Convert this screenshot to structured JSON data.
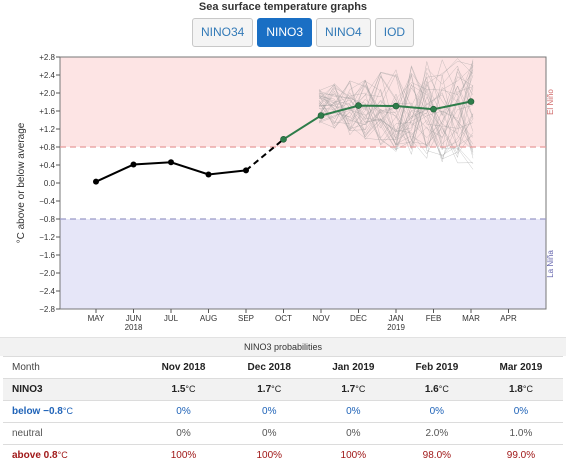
{
  "page": {
    "title": "Sea surface temperature graphs",
    "tabs": [
      {
        "label": "NINO34",
        "active": false
      },
      {
        "label": "NINO3",
        "active": true
      },
      {
        "label": "NINO4",
        "active": false
      },
      {
        "label": "IOD",
        "active": false
      }
    ]
  },
  "chart_data": {
    "type": "line",
    "ylabel": "°C above or below average",
    "ylim": [
      -2.8,
      2.8
    ],
    "yticks": [
      "+2.8",
      "+2.4",
      "+2.0",
      "+1.6",
      "+1.2",
      "+0.8",
      "+0.4",
      "0.0",
      "−0.4",
      "−0.8",
      "−1.2",
      "−1.6",
      "−2.0",
      "−2.4",
      "−2.8"
    ],
    "x_ticks": [
      "MAY",
      "JUN",
      "JUL",
      "AUG",
      "SEP",
      "OCT",
      "NOV",
      "DEC",
      "JAN",
      "FEB",
      "MAR",
      "APR"
    ],
    "year_labels": [
      {
        "label": "2018",
        "under": "JUN"
      },
      {
        "label": "2019",
        "under": "JAN"
      }
    ],
    "thresholds": {
      "el_nino": 0.8,
      "la_nina": -0.8
    },
    "zone_labels": {
      "el_nino": "El Niño",
      "la_nina": "La Niña"
    },
    "colors": {
      "observed": "#000000",
      "forecast": "#2e7d4a",
      "el_nino_zone": "#fde4e4",
      "la_nina_zone": "#e6e6f8",
      "el_nino_line": "#e89a9a",
      "la_nina_line": "#9a9ac8",
      "ensemble": "#9a9a9a"
    },
    "series": [
      {
        "kind": "observed",
        "x": [
          "MAY",
          "JUN",
          "JUL",
          "AUG",
          "SEP"
        ],
        "values": [
          0.03,
          0.41,
          0.46,
          0.19,
          0.28
        ]
      },
      {
        "kind": "link",
        "x": [
          "SEP",
          "OCT"
        ],
        "values": [
          0.28,
          0.97
        ]
      },
      {
        "kind": "forecast",
        "x": [
          "OCT",
          "NOV",
          "DEC",
          "JAN",
          "FEB",
          "MAR"
        ],
        "values": [
          0.97,
          1.5,
          1.72,
          1.71,
          1.64,
          1.81
        ]
      }
    ],
    "ensemble": {
      "x": [
        "NOV",
        "DEC",
        "JAN",
        "FEB",
        "MAR"
      ],
      "low": [
        1.3,
        1.0,
        0.7,
        0.5,
        0.3
      ],
      "high": [
        2.1,
        2.4,
        2.6,
        2.75,
        2.8
      ],
      "members": 36
    }
  },
  "probabilities": {
    "title": "NINO3 probabilities",
    "header_label": "Month",
    "unit": "°C",
    "months": [
      "Nov 2018",
      "Dec 2018",
      "Jan 2019",
      "Feb 2019",
      "Mar 2019"
    ],
    "rows": [
      {
        "label": "NINO3",
        "kind": "nino",
        "values": [
          "1.5",
          "1.7",
          "1.7",
          "1.6",
          "1.8"
        ]
      },
      {
        "label": "below −0.8",
        "kind": "below",
        "values": [
          "0%",
          "0%",
          "0%",
          "0%",
          "0%"
        ]
      },
      {
        "label": "neutral",
        "kind": "neutral",
        "values": [
          "0%",
          "0%",
          "0%",
          "2.0%",
          "1.0%"
        ]
      },
      {
        "label": "above 0.8",
        "kind": "above",
        "values": [
          "100%",
          "100%",
          "100%",
          "98.0%",
          "99.0%"
        ]
      }
    ]
  }
}
